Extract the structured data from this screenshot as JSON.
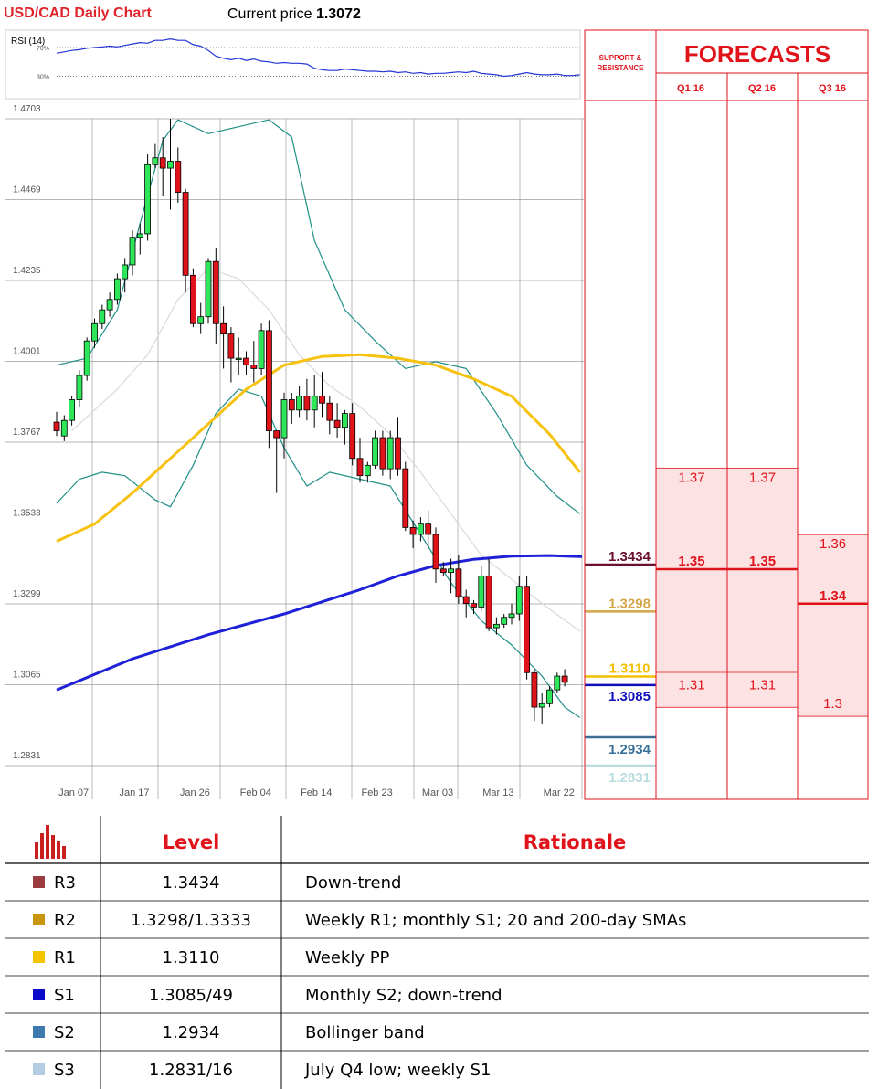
{
  "header": {
    "title": "USD/CAD Daily Chart",
    "price_label": "Current price",
    "price_value": "1.3072"
  },
  "colors": {
    "bull": "#2ee65a",
    "bear": "#e0131b",
    "sma50": "#f7c20f",
    "sma200": "#1e21d8",
    "bollinger": "#1f8f86",
    "sma20": "#d9d9d9",
    "accent_red": "#e0232a",
    "rsi_line": "#2334d6"
  },
  "rsi": {
    "label": "RSI (14)",
    "ticks": [
      "70%",
      "30%"
    ],
    "tick_values": [
      70,
      30
    ],
    "values": [
      62,
      64,
      66,
      67,
      69,
      70,
      71,
      72,
      71,
      73,
      75,
      77,
      76,
      80,
      80,
      82,
      80,
      80,
      74,
      72,
      66,
      58,
      55,
      53,
      55,
      52,
      54,
      51,
      50,
      48,
      49,
      48,
      48,
      47,
      41,
      39,
      38,
      38,
      40,
      39,
      38,
      37,
      37,
      36,
      37,
      35,
      36,
      34,
      35,
      33,
      34,
      34,
      35,
      36,
      35,
      37,
      34,
      33,
      32,
      30,
      31,
      33,
      35,
      33,
      32,
      32,
      33,
      31,
      31,
      32
    ]
  },
  "chart_data": {
    "type": "candlestick",
    "title": "USD/CAD Daily Chart",
    "ylim": [
      1.2831,
      1.4703
    ],
    "y_ticks": [
      "1.4703",
      "1.4469",
      "1.4235",
      "1.4001",
      "1.3767",
      "1.3533",
      "1.3299",
      "1.3065",
      "1.2831"
    ],
    "y_tick_values": [
      1.4703,
      1.4469,
      1.4235,
      1.4001,
      1.3767,
      1.3533,
      1.3299,
      1.3065,
      1.2831
    ],
    "x_ticks": [
      "Jan 07",
      "Jan 17",
      "Jan 26",
      "Feb 04",
      "Feb 14",
      "Feb 23",
      "Mar 03",
      "Mar 13",
      "Mar 22"
    ],
    "x_tick_index": [
      2,
      10,
      18,
      26,
      34,
      42,
      50,
      58,
      66
    ],
    "candles": [
      [
        1.3825,
        1.38,
        1.3855,
        1.3785
      ],
      [
        1.3785,
        1.383,
        1.3845,
        1.377
      ],
      [
        1.383,
        1.389,
        1.39,
        1.3815
      ],
      [
        1.389,
        1.396,
        1.3975,
        1.387
      ],
      [
        1.396,
        1.406,
        1.407,
        1.3945
      ],
      [
        1.406,
        1.411,
        1.4125,
        1.404
      ],
      [
        1.411,
        1.415,
        1.4165,
        1.4095
      ],
      [
        1.415,
        1.418,
        1.42,
        1.413
      ],
      [
        1.418,
        1.424,
        1.4255,
        1.4165
      ],
      [
        1.424,
        1.428,
        1.43,
        1.42
      ],
      [
        1.428,
        1.436,
        1.438,
        1.425
      ],
      [
        1.436,
        1.437,
        1.44,
        1.431
      ],
      [
        1.437,
        1.457,
        1.46,
        1.435
      ],
      [
        1.457,
        1.459,
        1.463,
        1.456
      ],
      [
        1.459,
        1.456,
        1.465,
        1.448
      ],
      [
        1.456,
        1.458,
        1.4703,
        1.444
      ],
      [
        1.458,
        1.449,
        1.462,
        1.446
      ],
      [
        1.449,
        1.425,
        1.45,
        1.42
      ],
      [
        1.425,
        1.411,
        1.427,
        1.41
      ],
      [
        1.411,
        1.413,
        1.417,
        1.408
      ],
      [
        1.413,
        1.429,
        1.43,
        1.411
      ],
      [
        1.429,
        1.411,
        1.433,
        1.405
      ],
      [
        1.411,
        1.408,
        1.416,
        1.398
      ],
      [
        1.408,
        1.401,
        1.41,
        1.394
      ],
      [
        1.401,
        1.401,
        1.407,
        1.396
      ],
      [
        1.401,
        1.399,
        1.403,
        1.396
      ],
      [
        1.399,
        1.398,
        1.406,
        1.394
      ],
      [
        1.398,
        1.409,
        1.411,
        1.396
      ],
      [
        1.409,
        1.38,
        1.412,
        1.375
      ],
      [
        1.38,
        1.378,
        1.38,
        1.362
      ],
      [
        1.378,
        1.389,
        1.391,
        1.372
      ],
      [
        1.389,
        1.386,
        1.391,
        1.382
      ],
      [
        1.386,
        1.39,
        1.393,
        1.384
      ],
      [
        1.39,
        1.386,
        1.395,
        1.383
      ],
      [
        1.386,
        1.39,
        1.396,
        1.381
      ],
      [
        1.39,
        1.388,
        1.397,
        1.384
      ],
      [
        1.388,
        1.383,
        1.39,
        1.379
      ],
      [
        1.383,
        1.381,
        1.388,
        1.378
      ],
      [
        1.381,
        1.385,
        1.386,
        1.376
      ],
      [
        1.385,
        1.372,
        1.388,
        1.37
      ],
      [
        1.372,
        1.367,
        1.378,
        1.365
      ],
      [
        1.367,
        1.37,
        1.371,
        1.365
      ],
      [
        1.37,
        1.378,
        1.38,
        1.369
      ],
      [
        1.378,
        1.369,
        1.38,
        1.367
      ],
      [
        1.369,
        1.378,
        1.38,
        1.366
      ],
      [
        1.378,
        1.369,
        1.384,
        1.367
      ],
      [
        1.369,
        1.352,
        1.371,
        1.351
      ],
      [
        1.352,
        1.35,
        1.354,
        1.346
      ],
      [
        1.35,
        1.353,
        1.355,
        1.348
      ],
      [
        1.353,
        1.35,
        1.357,
        1.346
      ],
      [
        1.35,
        1.34,
        1.352,
        1.336
      ],
      [
        1.34,
        1.339,
        1.342,
        1.338
      ],
      [
        1.339,
        1.34,
        1.343,
        1.333
      ],
      [
        1.34,
        1.332,
        1.344,
        1.33
      ],
      [
        1.332,
        1.33,
        1.334,
        1.326
      ],
      [
        1.33,
        1.329,
        1.331,
        1.327
      ],
      [
        1.329,
        1.338,
        1.341,
        1.328
      ],
      [
        1.338,
        1.323,
        1.343,
        1.322
      ],
      [
        1.323,
        1.324,
        1.326,
        1.321
      ],
      [
        1.324,
        1.326,
        1.327,
        1.323
      ],
      [
        1.326,
        1.327,
        1.33,
        1.324
      ],
      [
        1.327,
        1.335,
        1.338,
        1.325
      ],
      [
        1.335,
        1.31,
        1.338,
        1.308
      ],
      [
        1.31,
        1.3,
        1.311,
        1.296
      ],
      [
        1.3,
        1.301,
        1.304,
        1.295
      ],
      [
        1.301,
        1.305,
        1.306,
        1.3
      ],
      [
        1.305,
        1.309,
        1.31,
        1.304
      ],
      [
        1.309,
        1.3072,
        1.311,
        1.306
      ]
    ],
    "sma50": [
      [
        0,
        1.348
      ],
      [
        5,
        1.353
      ],
      [
        10,
        1.362
      ],
      [
        15,
        1.372
      ],
      [
        20,
        1.382
      ],
      [
        25,
        1.392
      ],
      [
        30,
        1.399
      ],
      [
        35,
        1.4015
      ],
      [
        40,
        1.402
      ],
      [
        45,
        1.401
      ],
      [
        50,
        1.399
      ],
      [
        55,
        1.395
      ],
      [
        60,
        1.39
      ],
      [
        65,
        1.379
      ],
      [
        69,
        1.368
      ]
    ],
    "sma200": [
      [
        0,
        1.305
      ],
      [
        10,
        1.314
      ],
      [
        20,
        1.321
      ],
      [
        30,
        1.327
      ],
      [
        40,
        1.334
      ],
      [
        45,
        1.338
      ],
      [
        50,
        1.341
      ],
      [
        55,
        1.3428
      ],
      [
        60,
        1.3437
      ],
      [
        65,
        1.3439
      ],
      [
        69,
        1.3436
      ]
    ],
    "sma20": [
      [
        2,
        1.38
      ],
      [
        8,
        1.392
      ],
      [
        12,
        1.402
      ],
      [
        16,
        1.418
      ],
      [
        20,
        1.427
      ],
      [
        24,
        1.424
      ],
      [
        28,
        1.415
      ],
      [
        32,
        1.402
      ],
      [
        36,
        1.393
      ],
      [
        40,
        1.387
      ],
      [
        44,
        1.379
      ],
      [
        48,
        1.368
      ],
      [
        52,
        1.356
      ],
      [
        56,
        1.344
      ],
      [
        60,
        1.337
      ],
      [
        64,
        1.33
      ],
      [
        69,
        1.322
      ]
    ],
    "boll_upper": [
      [
        0,
        1.399
      ],
      [
        4,
        1.401
      ],
      [
        8,
        1.415
      ],
      [
        11,
        1.44
      ],
      [
        14,
        1.464
      ],
      [
        16,
        1.47
      ],
      [
        20,
        1.466
      ],
      [
        24,
        1.468
      ],
      [
        28,
        1.47
      ],
      [
        31,
        1.465
      ],
      [
        34,
        1.435
      ],
      [
        38,
        1.415
      ],
      [
        42,
        1.406
      ],
      [
        46,
        1.398
      ],
      [
        50,
        1.4
      ],
      [
        54,
        1.398
      ],
      [
        58,
        1.385
      ],
      [
        62,
        1.37
      ],
      [
        66,
        1.361
      ],
      [
        69,
        1.356
      ]
    ],
    "boll_lower": [
      [
        0,
        1.359
      ],
      [
        3,
        1.366
      ],
      [
        6,
        1.368
      ],
      [
        9,
        1.367
      ],
      [
        13,
        1.36
      ],
      [
        15,
        1.358
      ],
      [
        18,
        1.37
      ],
      [
        21,
        1.385
      ],
      [
        24,
        1.392
      ],
      [
        27,
        1.39
      ],
      [
        30,
        1.375
      ],
      [
        33,
        1.364
      ],
      [
        36,
        1.368
      ],
      [
        40,
        1.366
      ],
      [
        44,
        1.364
      ],
      [
        48,
        1.35
      ],
      [
        52,
        1.336
      ],
      [
        56,
        1.325
      ],
      [
        60,
        1.318
      ],
      [
        64,
        1.309
      ],
      [
        67,
        1.3
      ],
      [
        69,
        1.297
      ]
    ],
    "support_resistance": [
      {
        "label": "1.3434",
        "value": 1.3434,
        "color": "#6b0f2c"
      },
      {
        "label": "1.3298",
        "value": 1.3298,
        "color": "#d4a64a"
      },
      {
        "label": "1.3110",
        "value": 1.311,
        "color": "#f2c000"
      },
      {
        "label": "1.3085",
        "value": 1.3085,
        "color": "#0f0fbd"
      },
      {
        "label": "1.2934",
        "value": 1.2934,
        "color": "#3b7199"
      },
      {
        "label": "1.2831",
        "value": 1.2831,
        "color": "#b8dcdf"
      }
    ]
  },
  "forecasts": {
    "sr_header": "SUPPORT & RESISTANCE",
    "title": "FORECASTS",
    "columns": [
      "Q1 16",
      "Q2 16",
      "Q3 16"
    ],
    "cols": [
      {
        "top_label": "1.37",
        "top_value": 1.37,
        "mid_label": "1.35",
        "mid_value": 1.35,
        "bottom_label": "1.31",
        "bottom_value": 1.31
      },
      {
        "top_label": "1.37",
        "top_value": 1.37,
        "mid_label": "1.35",
        "mid_value": 1.35,
        "bottom_label": "1.31",
        "bottom_value": 1.31
      },
      {
        "top_label": "1.36",
        "top_value": 1.36,
        "mid_label": "1.34",
        "mid_value": 1.34,
        "bottom_label": "1.3",
        "bottom_value": 1.3
      }
    ]
  },
  "table": {
    "headers": [
      "Level",
      "Rationale"
    ],
    "rows": [
      {
        "swatch": "#9c3b3f",
        "name": "R3",
        "level": "1.3434",
        "rationale": "Down-trend"
      },
      {
        "swatch": "#c8960c",
        "name": "R2",
        "level": "1.3298/1.3333",
        "rationale": "Weekly R1; monthly S1; 20 and 200-day SMAs"
      },
      {
        "swatch": "#f5c400",
        "name": "R1",
        "level": "1.3110",
        "rationale": "Weekly PP"
      },
      {
        "swatch": "#0a0acb",
        "name": "S1",
        "level": "1.3085/49",
        "rationale": "Monthly S2; down-trend"
      },
      {
        "swatch": "#3f78ad",
        "name": "S2",
        "level": "1.2934",
        "rationale": "Bollinger band"
      },
      {
        "swatch": "#b4cde4",
        "name": "S3",
        "level": "1.2831/16",
        "rationale": "July Q4 low; weekly S1"
      }
    ]
  }
}
